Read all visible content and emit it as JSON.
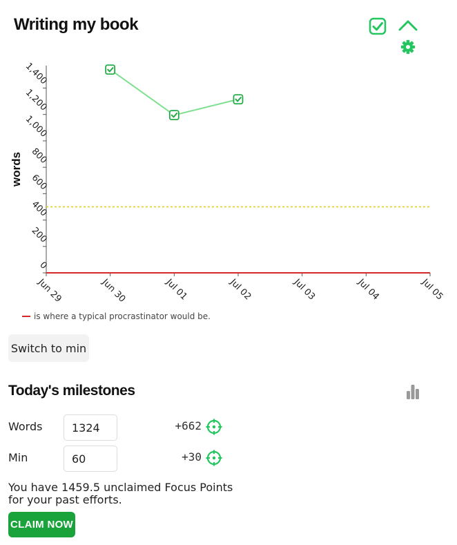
{
  "header": {
    "title": "Writing my book",
    "complete_icon": "checkbox-check-icon",
    "collapse_icon": "chevron-up-icon",
    "settings_icon": "gear-icon"
  },
  "chart_data": {
    "type": "line",
    "ylabel": "words",
    "xlabel": "",
    "x_ticks": [
      "Jun 29",
      "Jun 30",
      "Jul 01",
      "Jul 02",
      "Jul 03",
      "Jul 04",
      "Jul 05"
    ],
    "y_ticks": [
      0,
      200,
      400,
      600,
      800,
      1000,
      1200,
      1400
    ],
    "y_tick_labels": [
      "0",
      "200",
      "400",
      "600",
      "800",
      "1,000",
      "1,200",
      "1,400"
    ],
    "ylim": [
      0,
      1570
    ],
    "series": [
      {
        "x": [
          "Jun 30",
          "Jul 01",
          "Jul 02"
        ],
        "values": [
          1540,
          1195,
          1315
        ],
        "marker": "checkbox-check-icon",
        "color": "#7ee08f",
        "marker_color": "#22aa44"
      }
    ],
    "reference_lines": [
      {
        "value": 500,
        "style": "dotted",
        "color": "#e0d020"
      },
      {
        "value": 0,
        "style": "solid",
        "color": "#d62828"
      }
    ],
    "legend": {
      "placement": "bottom-left",
      "color": "#d62828",
      "text": "is where a typical procrastinator would be."
    }
  },
  "controls": {
    "switch_label": "Switch to min"
  },
  "milestones": {
    "title": "Today's milestones",
    "stats_icon": "bar-chart-icon",
    "rows": [
      {
        "label": "Words",
        "value": "1324",
        "delta": "+662",
        "icon": "target-icon"
      },
      {
        "label": "Min",
        "value": "60",
        "delta": "+30",
        "icon": "target-icon"
      }
    ]
  },
  "focus": {
    "text": "You have 1459.5 unclaimed Focus Points for your past efforts.",
    "claim_label": "CLAIM NOW"
  },
  "colors": {
    "accent": "#1aa33a",
    "icon_green": "#22c55e",
    "muted_icon": "#999999"
  }
}
